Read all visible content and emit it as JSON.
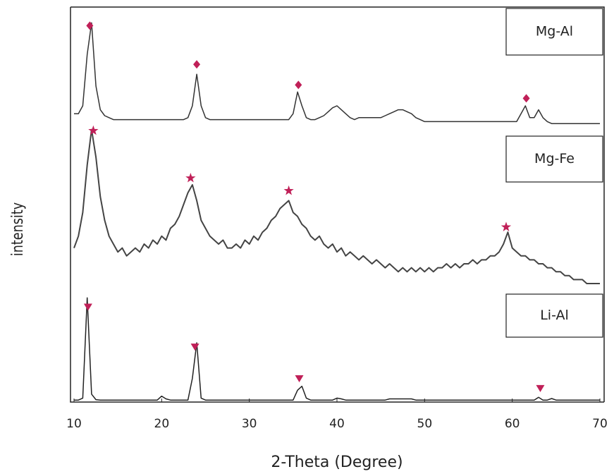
{
  "chart_data": {
    "type": "line",
    "x_label": "2-Theta (Degree)",
    "y_label": "intensity",
    "xlim": [
      10,
      70
    ],
    "xticks": [
      10,
      20,
      30,
      40,
      50,
      60,
      70
    ],
    "ylim": [
      0,
      100
    ],
    "marker_color": "#c02058",
    "x": [
      10,
      10.5,
      11,
      11.5,
      12,
      12.5,
      13,
      13.5,
      14,
      14.5,
      15,
      15.5,
      16,
      16.5,
      17,
      17.5,
      18,
      18.5,
      19,
      19.5,
      20,
      20.5,
      21,
      21.5,
      22,
      22.5,
      23,
      23.5,
      24,
      24.5,
      25,
      25.5,
      26,
      26.5,
      27,
      27.5,
      28,
      28.5,
      29,
      29.5,
      30,
      30.5,
      31,
      31.5,
      32,
      32.5,
      33,
      33.5,
      34,
      34.5,
      35,
      35.5,
      36,
      36.5,
      37,
      37.5,
      38,
      38.5,
      39,
      39.5,
      40,
      40.5,
      41,
      41.5,
      42,
      42.5,
      43,
      43.5,
      44,
      44.5,
      45,
      45.5,
      46,
      46.5,
      47,
      47.5,
      48,
      48.5,
      49,
      49.5,
      50,
      50.5,
      51,
      51.5,
      52,
      52.5,
      53,
      53.5,
      54,
      54.5,
      55,
      55.5,
      56,
      56.5,
      57,
      57.5,
      58,
      58.5,
      59,
      59.5,
      60,
      60.5,
      61,
      61.5,
      62,
      62.5,
      63,
      63.5,
      64,
      64.5,
      65,
      65.5,
      66,
      66.5,
      67,
      67.5,
      68,
      68.5,
      69,
      69.5,
      70
    ],
    "series": [
      {
        "name": "Mg-Al",
        "color": "#333333",
        "marker": "diamond",
        "peaks": [
          11.8,
          24,
          35.6,
          61.6
        ],
        "values": [
          73,
          73,
          75,
          88,
          96,
          80,
          74,
          72.5,
          72,
          71.5,
          71.5,
          71.5,
          71.5,
          71.5,
          71.5,
          71.5,
          71.5,
          71.5,
          71.5,
          71.5,
          71.5,
          71.5,
          71.5,
          71.5,
          71.5,
          71.5,
          72,
          75,
          83,
          75,
          72,
          71.5,
          71.5,
          71.5,
          71.5,
          71.5,
          71.5,
          71.5,
          71.5,
          71.5,
          71.5,
          71.5,
          71.5,
          71.5,
          71.5,
          71.5,
          71.5,
          71.5,
          71.5,
          71.5,
          73,
          78.5,
          75,
          72,
          71.5,
          71.5,
          72,
          72.5,
          73.5,
          74.5,
          75,
          74,
          73,
          72,
          71.5,
          72,
          72,
          72,
          72,
          72,
          72,
          72.5,
          73,
          73.5,
          74,
          74,
          73.5,
          73,
          72,
          71.5,
          71,
          71,
          71,
          71,
          71,
          71,
          71,
          71,
          71,
          71,
          71,
          71,
          71,
          71,
          71,
          71,
          71,
          71,
          71,
          71,
          71,
          71,
          73,
          75,
          72,
          72,
          74,
          72,
          71,
          70.5,
          70.5,
          70.5,
          70.5,
          70.5,
          70.5,
          70.5,
          70.5,
          70.5,
          70.5,
          70.5,
          70.5
        ]
      },
      {
        "name": "Mg-Fe",
        "color": "#444444",
        "marker": "star",
        "peaks": [
          12.2,
          23.3,
          34.5,
          59.3
        ],
        "values": [
          39,
          42,
          48,
          60,
          69,
          62,
          52,
          46,
          42,
          40,
          38,
          39,
          37,
          38,
          39,
          38,
          40,
          39,
          41,
          40,
          42,
          41,
          44,
          45,
          47,
          50,
          53,
          55,
          51,
          46,
          44,
          42,
          41,
          40,
          41,
          39,
          39,
          40,
          39,
          41,
          40,
          42,
          41,
          43,
          44,
          46,
          47,
          49,
          50,
          51,
          48,
          47,
          45,
          44,
          42,
          41,
          42,
          40,
          39,
          40,
          38,
          39,
          37,
          38,
          37,
          36,
          37,
          36,
          35,
          36,
          35,
          34,
          35,
          34,
          33,
          34,
          33,
          34,
          33,
          34,
          33,
          34,
          33,
          34,
          34,
          35,
          34,
          35,
          34,
          35,
          35,
          36,
          35,
          36,
          36,
          37,
          37,
          38,
          40,
          43,
          39,
          38,
          37,
          37,
          36,
          36,
          35,
          35,
          34,
          34,
          33,
          33,
          32,
          32,
          31,
          31,
          31,
          30,
          30,
          30,
          30
        ]
      },
      {
        "name": "Li-Al",
        "color": "#222222",
        "marker": "triangle",
        "peaks": [
          11.6,
          23.8,
          35.7,
          63.2
        ],
        "values": [
          0.5,
          0.5,
          1,
          26.4,
          2,
          0.6,
          0.5,
          0.5,
          0.5,
          0.5,
          0.5,
          0.5,
          0.5,
          0.5,
          0.5,
          0.5,
          0.5,
          0.5,
          0.5,
          0.5,
          1.5,
          0.8,
          0.5,
          0.5,
          0.5,
          0.5,
          0.5,
          6,
          15,
          1,
          0.5,
          0.5,
          0.5,
          0.5,
          0.5,
          0.5,
          0.5,
          0.5,
          0.5,
          0.5,
          0.5,
          0.5,
          0.5,
          0.5,
          0.5,
          0.5,
          0.5,
          0.5,
          0.5,
          0.5,
          0.5,
          3,
          4,
          1,
          0.5,
          0.5,
          0.5,
          0.5,
          0.5,
          0.5,
          1,
          0.8,
          0.5,
          0.5,
          0.5,
          0.5,
          0.5,
          0.5,
          0.5,
          0.5,
          0.5,
          0.5,
          0.8,
          0.8,
          0.8,
          0.8,
          0.8,
          0.8,
          0.5,
          0.5,
          0.5,
          0.5,
          0.5,
          0.5,
          0.5,
          0.5,
          0.5,
          0.5,
          0.5,
          0.5,
          0.5,
          0.5,
          0.5,
          0.5,
          0.5,
          0.5,
          0.5,
          0.5,
          0.5,
          0.5,
          0.5,
          0.5,
          0.5,
          0.5,
          0.5,
          0.5,
          1.2,
          0.5,
          0.5,
          0.9,
          0.5,
          0.5,
          0.5,
          0.5,
          0.5,
          0.5,
          0.5,
          0.5,
          0.5,
          0.5,
          0.5
        ]
      }
    ]
  }
}
